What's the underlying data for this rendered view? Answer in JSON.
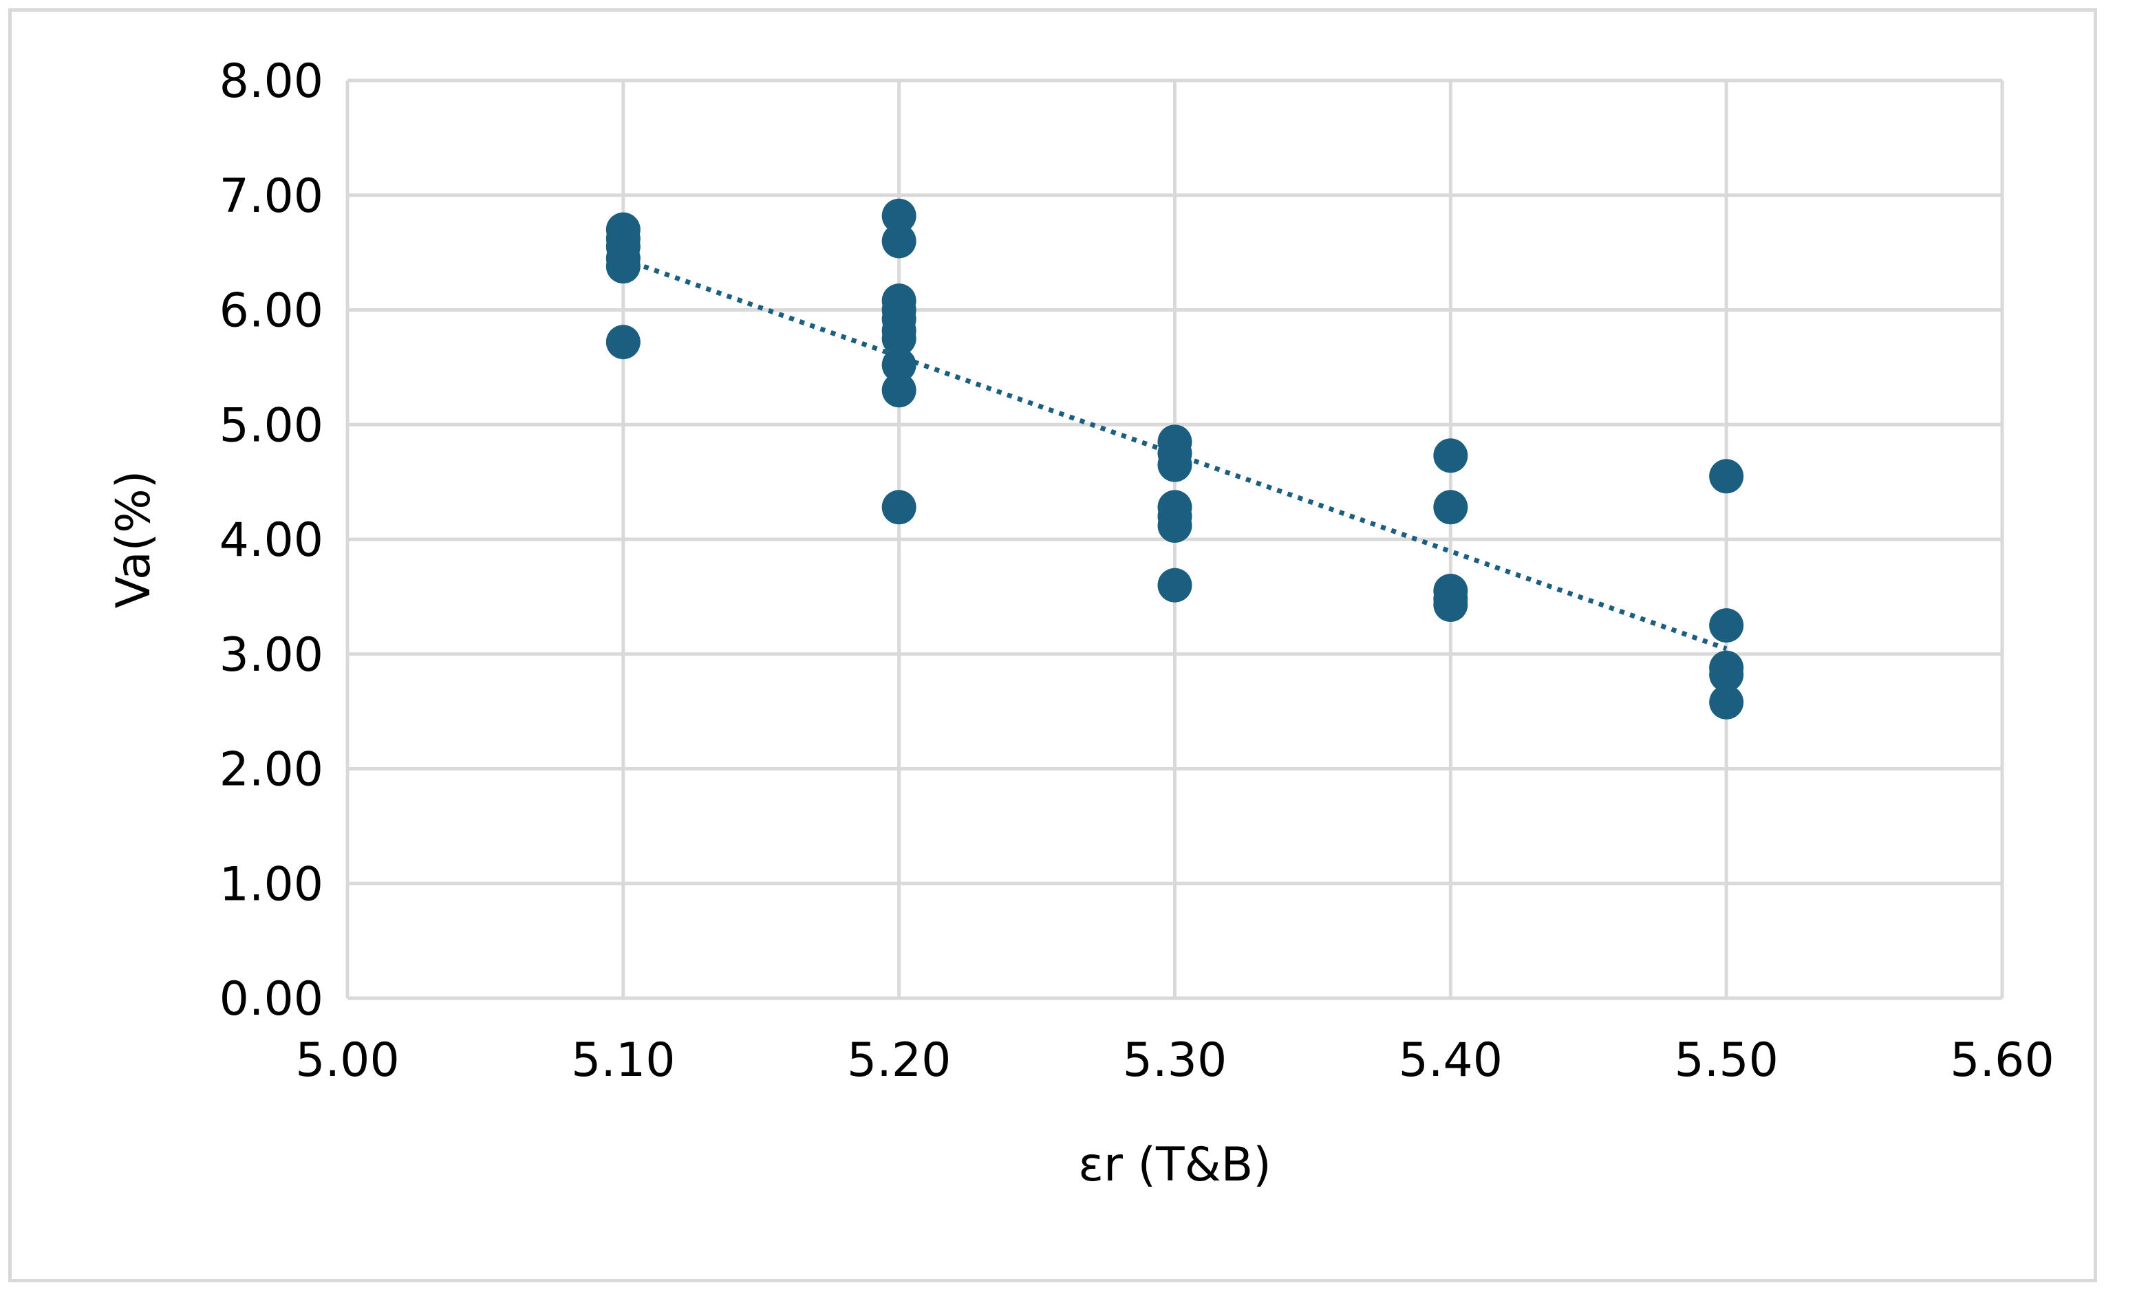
{
  "chart_data": {
    "type": "scatter",
    "title": "",
    "xlabel": "εr (T&B)",
    "ylabel": "Va(%)",
    "xlim": [
      5.0,
      5.6
    ],
    "ylim": [
      0.0,
      8.0
    ],
    "x_ticks": [
      "5.00",
      "5.10",
      "5.20",
      "5.30",
      "5.40",
      "5.50",
      "5.60"
    ],
    "y_ticks": [
      "0.00",
      "1.00",
      "2.00",
      "3.00",
      "4.00",
      "5.00",
      "6.00",
      "7.00",
      "8.00"
    ],
    "grid": true,
    "legend": "none",
    "marker_color": "#1b5e80",
    "trendline": {
      "type": "linear",
      "style": "dotted",
      "color": "#1b5e80",
      "x_range": [
        5.1,
        5.5
      ]
    },
    "points": [
      {
        "x": 5.1,
        "y": 6.7
      },
      {
        "x": 5.1,
        "y": 6.62
      },
      {
        "x": 5.1,
        "y": 6.55
      },
      {
        "x": 5.1,
        "y": 6.45
      },
      {
        "x": 5.1,
        "y": 6.38
      },
      {
        "x": 5.1,
        "y": 5.72
      },
      {
        "x": 5.2,
        "y": 6.82
      },
      {
        "x": 5.2,
        "y": 6.6
      },
      {
        "x": 5.2,
        "y": 6.08
      },
      {
        "x": 5.2,
        "y": 6.0
      },
      {
        "x": 5.2,
        "y": 5.92
      },
      {
        "x": 5.2,
        "y": 5.82
      },
      {
        "x": 5.2,
        "y": 5.75
      },
      {
        "x": 5.2,
        "y": 5.52
      },
      {
        "x": 5.2,
        "y": 5.3
      },
      {
        "x": 5.2,
        "y": 4.28
      },
      {
        "x": 5.3,
        "y": 4.85
      },
      {
        "x": 5.3,
        "y": 4.75
      },
      {
        "x": 5.3,
        "y": 4.65
      },
      {
        "x": 5.3,
        "y": 4.28
      },
      {
        "x": 5.3,
        "y": 4.2
      },
      {
        "x": 5.3,
        "y": 4.12
      },
      {
        "x": 5.3,
        "y": 3.6
      },
      {
        "x": 5.4,
        "y": 4.73
      },
      {
        "x": 5.4,
        "y": 4.28
      },
      {
        "x": 5.4,
        "y": 3.55
      },
      {
        "x": 5.4,
        "y": 3.48
      },
      {
        "x": 5.4,
        "y": 3.43
      },
      {
        "x": 5.5,
        "y": 4.55
      },
      {
        "x": 5.5,
        "y": 3.25
      },
      {
        "x": 5.5,
        "y": 2.88
      },
      {
        "x": 5.5,
        "y": 2.82
      },
      {
        "x": 5.5,
        "y": 2.58
      }
    ]
  }
}
